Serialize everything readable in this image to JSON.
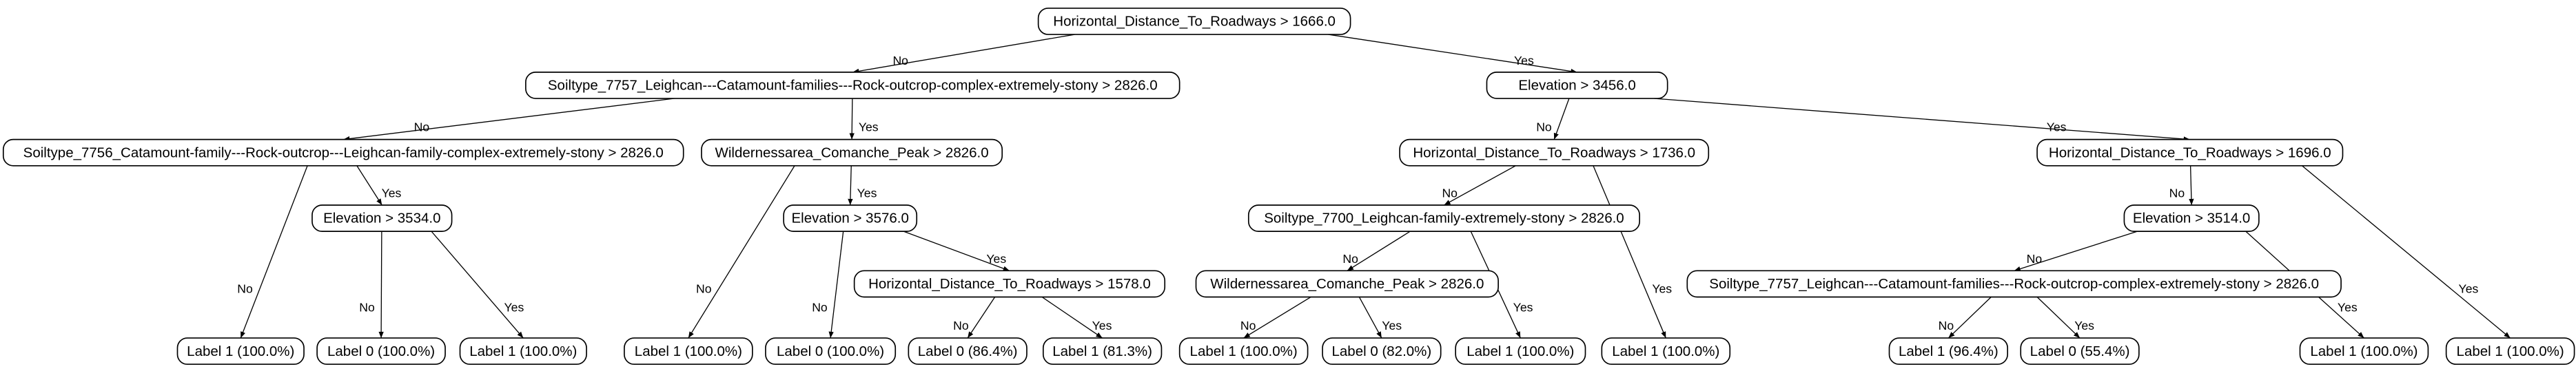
{
  "tree": {
    "label": "Horizontal_Distance_To_Roadways > 1666.0",
    "children": [
      {
        "edge": "No",
        "label": "Soiltype_7757_Leighcan---Catamount-families---Rock-outcrop-complex-extremely-stony > 2826.0",
        "children": [
          {
            "edge": "No",
            "label": "Soiltype_7756_Catamount-family---Rock-outcrop---Leighcan-family-complex-extremely-stony > 2826.0",
            "children": [
              {
                "edge": "No",
                "label": "Label 1 (100.0%)"
              },
              {
                "edge": "Yes",
                "label": "Elevation > 3534.0",
                "children": [
                  {
                    "edge": "No",
                    "label": "Label 0 (100.0%)"
                  },
                  {
                    "edge": "Yes",
                    "label": "Label 1 (100.0%)"
                  }
                ]
              }
            ]
          },
          {
            "edge": "Yes",
            "label": "Wildernessarea_Comanche_Peak > 2826.0",
            "children": [
              {
                "edge": "No",
                "label": "Label 1 (100.0%)"
              },
              {
                "edge": "Yes",
                "label": "Elevation > 3576.0",
                "children": [
                  {
                    "edge": "No",
                    "label": "Label 0 (100.0%)"
                  },
                  {
                    "edge": "Yes",
                    "label": "Horizontal_Distance_To_Roadways > 1578.0",
                    "children": [
                      {
                        "edge": "No",
                        "label": "Label 0 (86.4%)"
                      },
                      {
                        "edge": "Yes",
                        "label": "Label 1 (81.3%)"
                      }
                    ]
                  }
                ]
              }
            ]
          }
        ]
      },
      {
        "edge": "Yes",
        "label": "Elevation > 3456.0",
        "children": [
          {
            "edge": "No",
            "label": "Horizontal_Distance_To_Roadways > 1736.0",
            "children": [
              {
                "edge": "No",
                "label": "Soiltype_7700_Leighcan-family-extremely-stony > 2826.0",
                "children": [
                  {
                    "edge": "No",
                    "label": "Wildernessarea_Comanche_Peak > 2826.0",
                    "children": [
                      {
                        "edge": "No",
                        "label": "Label 1 (100.0%)"
                      },
                      {
                        "edge": "Yes",
                        "label": "Label 0 (82.0%)"
                      }
                    ]
                  },
                  {
                    "edge": "Yes",
                    "label": "Label 1 (100.0%)"
                  }
                ]
              },
              {
                "edge": "Yes",
                "label": "Label 1 (100.0%)"
              }
            ]
          },
          {
            "edge": "Yes",
            "label": "Horizontal_Distance_To_Roadways > 1696.0",
            "children": [
              {
                "edge": "No",
                "label": "Elevation > 3514.0",
                "children": [
                  {
                    "edge": "No",
                    "label": "Soiltype_7757_Leighcan---Catamount-families---Rock-outcrop-complex-extremely-stony > 2826.0",
                    "children": [
                      {
                        "edge": "No",
                        "label": "Label 1 (96.4%)"
                      },
                      {
                        "edge": "Yes",
                        "label": "Label 0 (55.4%)"
                      }
                    ]
                  },
                  {
                    "edge": "Yes",
                    "label": "Label 1 (100.0%)"
                  }
                ]
              },
              {
                "edge": "Yes",
                "label": "Label 1 (100.0%)"
              }
            ]
          }
        ]
      }
    ]
  }
}
